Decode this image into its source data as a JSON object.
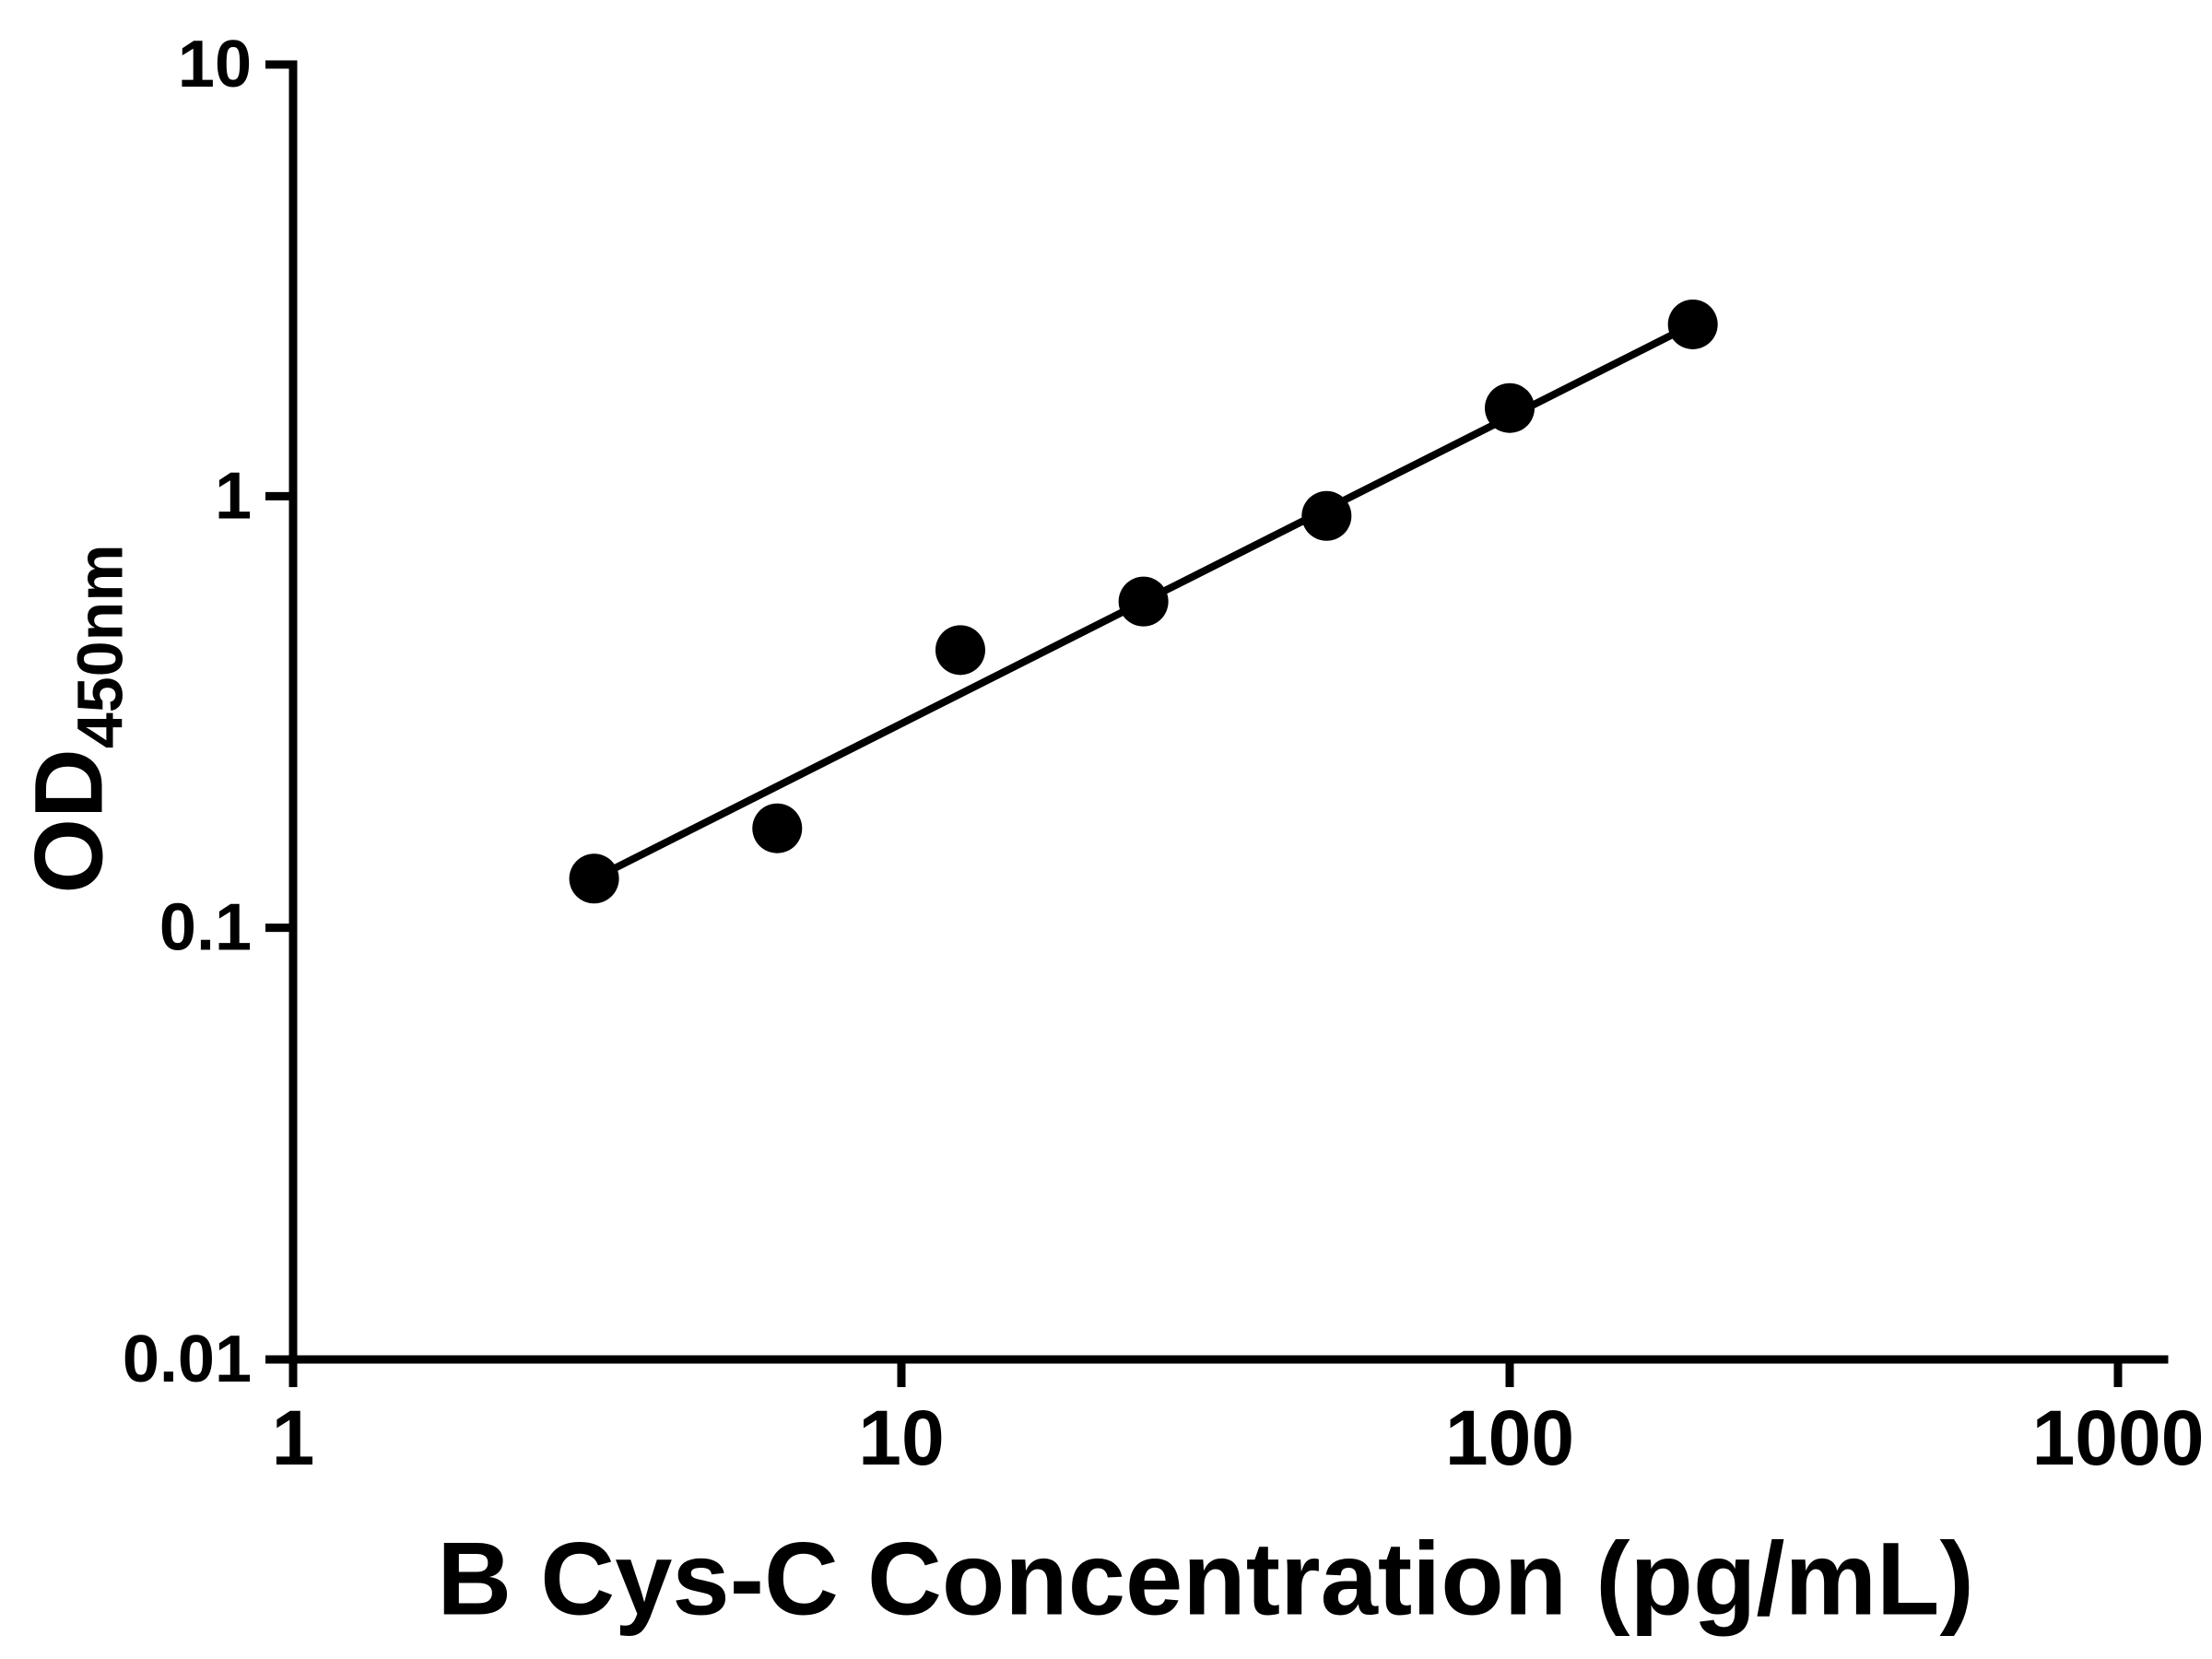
{
  "figure": {
    "background_color": "#ffffff",
    "foreground_color": "#000000"
  },
  "chart_data": {
    "type": "scatter",
    "title": "",
    "xlabel": "B Cys-C Concentration (pg/mL)",
    "ylabel": "OD450nm",
    "ylabel_parts": {
      "main": "OD",
      "sub": "450nm"
    },
    "x_scale": "log",
    "y_scale": "log",
    "xlim": [
      1,
      1000
    ],
    "ylim": [
      0.01,
      10
    ],
    "x_ticks": [
      1,
      10,
      100,
      1000
    ],
    "x_tick_labels": [
      "1",
      "10",
      "100",
      "1000"
    ],
    "y_ticks": [
      0.01,
      0.1,
      1,
      10
    ],
    "y_tick_labels": [
      "0.01",
      "0.1",
      "1",
      "10"
    ],
    "grid": false,
    "legend": "none",
    "series": [
      {
        "name": "standard-curve-points",
        "marker": "circle",
        "color": "#000000",
        "x": [
          3.125,
          6.25,
          12.5,
          25,
          50,
          100,
          200
        ],
        "y": [
          0.13,
          0.17,
          0.44,
          0.57,
          0.9,
          1.6,
          2.5
        ]
      }
    ],
    "fit_line": {
      "name": "standard-curve-fit",
      "color": "#000000",
      "x": [
        3.125,
        200
      ],
      "y": [
        0.13,
        2.5
      ]
    }
  }
}
